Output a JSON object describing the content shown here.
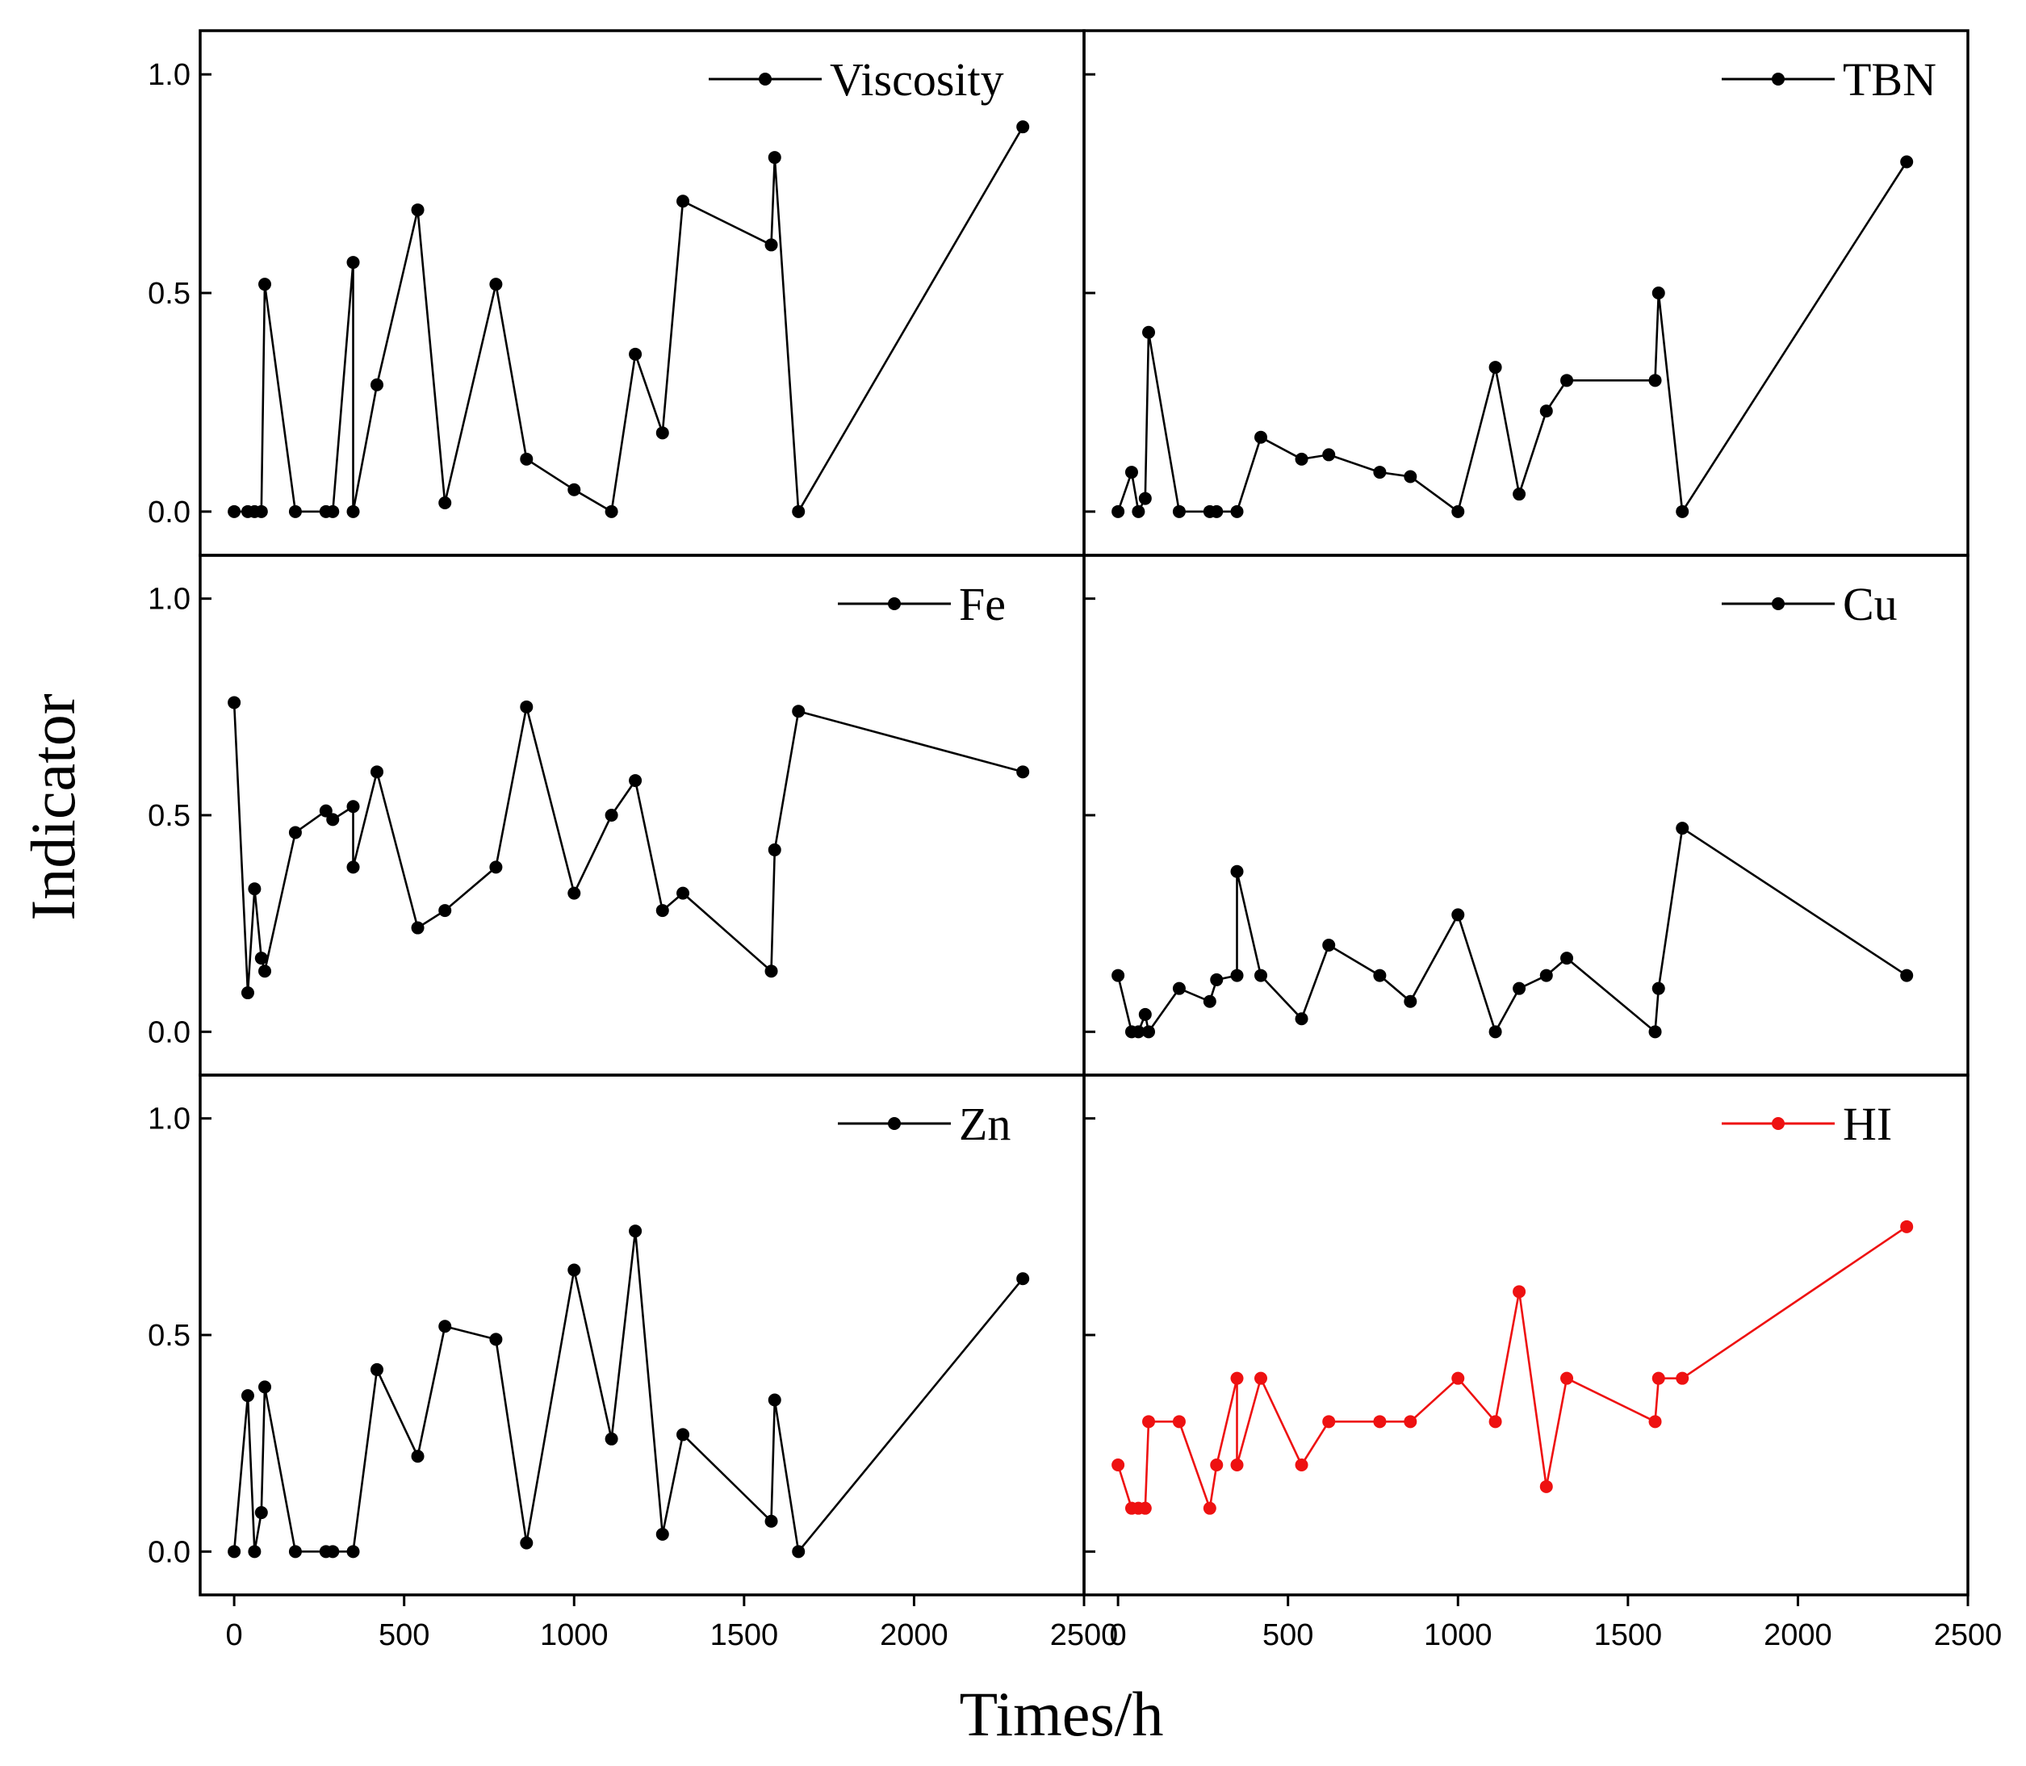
{
  "chart_data": {
    "type": "line",
    "xlabel": "Times/h",
    "ylabel": "Indicator",
    "xlim": [
      -100,
      2500
    ],
    "ylim": [
      -0.1,
      1.1
    ],
    "xticks": [
      0,
      500,
      1000,
      1500,
      2000,
      2500
    ],
    "yticks": [
      0.0,
      0.5,
      1.0
    ],
    "xtick_labels": [
      "0",
      "500",
      "1000",
      "1500",
      "2000",
      "2500"
    ],
    "ytick_labels": [
      "0.0",
      "0.5",
      "1.0"
    ],
    "layout": "3 rows x 2 columns, shared axes",
    "panels": [
      {
        "name": "Viscosity",
        "legend": "Viscosity",
        "color": "#000000",
        "x": [
          0,
          40,
          60,
          80,
          90,
          180,
          270,
          290,
          350,
          350,
          420,
          540,
          620,
          770,
          860,
          1000,
          1110,
          1180,
          1260,
          1320,
          1580,
          1590,
          1660,
          2320
        ],
        "y": [
          0,
          0,
          0,
          0,
          0.52,
          0,
          0,
          0,
          0.57,
          0,
          0.29,
          0.69,
          0.02,
          0.52,
          0.12,
          0.05,
          0,
          0.36,
          0.18,
          0.71,
          0.61,
          0.81,
          0,
          0.88
        ]
      },
      {
        "name": "TBN",
        "legend": "TBN",
        "color": "#000000",
        "x": [
          0,
          40,
          60,
          80,
          90,
          180,
          270,
          290,
          350,
          420,
          540,
          620,
          770,
          860,
          1000,
          1110,
          1180,
          1260,
          1320,
          1580,
          1590,
          1660,
          2320
        ],
        "y": [
          0,
          0.09,
          0,
          0.03,
          0.41,
          0,
          0,
          0,
          0,
          0.17,
          0.12,
          0.13,
          0.09,
          0.08,
          0,
          0.33,
          0.04,
          0.23,
          0.3,
          0.3,
          0.5,
          0,
          0.8
        ]
      },
      {
        "name": "Fe",
        "legend": "Fe",
        "color": "#000000",
        "x": [
          0,
          40,
          60,
          80,
          90,
          180,
          270,
          290,
          350,
          350,
          420,
          540,
          620,
          770,
          860,
          1000,
          1110,
          1180,
          1260,
          1320,
          1580,
          1590,
          1660,
          2320
        ],
        "y": [
          0.76,
          0.09,
          0.33,
          0.17,
          0.14,
          0.46,
          0.51,
          0.49,
          0.52,
          0.38,
          0.6,
          0.24,
          0.28,
          0.38,
          0.75,
          0.32,
          0.5,
          0.58,
          0.28,
          0.32,
          0.14,
          0.42,
          0.74,
          0.6
        ]
      },
      {
        "name": "Cu",
        "legend": "Cu",
        "color": "#000000",
        "x": [
          0,
          40,
          60,
          80,
          90,
          180,
          270,
          290,
          350,
          350,
          420,
          540,
          620,
          770,
          860,
          1000,
          1110,
          1180,
          1260,
          1320,
          1580,
          1590,
          1660,
          2320
        ],
        "y": [
          0.13,
          0,
          0,
          0.04,
          0,
          0.1,
          0.07,
          0.12,
          0.13,
          0.37,
          0.13,
          0.03,
          0.2,
          0.13,
          0.07,
          0.27,
          0,
          0.1,
          0.13,
          0.17,
          0,
          0.1,
          0.47,
          0.13
        ]
      },
      {
        "name": "Zn",
        "legend": "Zn",
        "color": "#000000",
        "x": [
          0,
          40,
          60,
          80,
          90,
          180,
          270,
          290,
          350,
          420,
          540,
          620,
          770,
          860,
          1000,
          1110,
          1180,
          1260,
          1320,
          1580,
          1590,
          1660,
          2320
        ],
        "y": [
          0,
          0.36,
          0,
          0.09,
          0.38,
          0,
          0,
          0,
          0,
          0.42,
          0.22,
          0.52,
          0.49,
          0.02,
          0.65,
          0.26,
          0.74,
          0.04,
          0.27,
          0.07,
          0.35,
          0,
          0.63
        ]
      },
      {
        "name": "HI",
        "legend": "HI",
        "color": "#ee1111",
        "x": [
          0,
          40,
          60,
          80,
          90,
          180,
          270,
          290,
          350,
          350,
          420,
          540,
          620,
          770,
          860,
          1000,
          1110,
          1180,
          1260,
          1320,
          1580,
          1590,
          1660,
          2320
        ],
        "y": [
          0.2,
          0.1,
          0.1,
          0.1,
          0.3,
          0.3,
          0.1,
          0.2,
          0.4,
          0.2,
          0.4,
          0.2,
          0.3,
          0.3,
          0.3,
          0.4,
          0.3,
          0.6,
          0.15,
          0.4,
          0.3,
          0.4,
          0.4,
          0.75
        ]
      }
    ]
  }
}
